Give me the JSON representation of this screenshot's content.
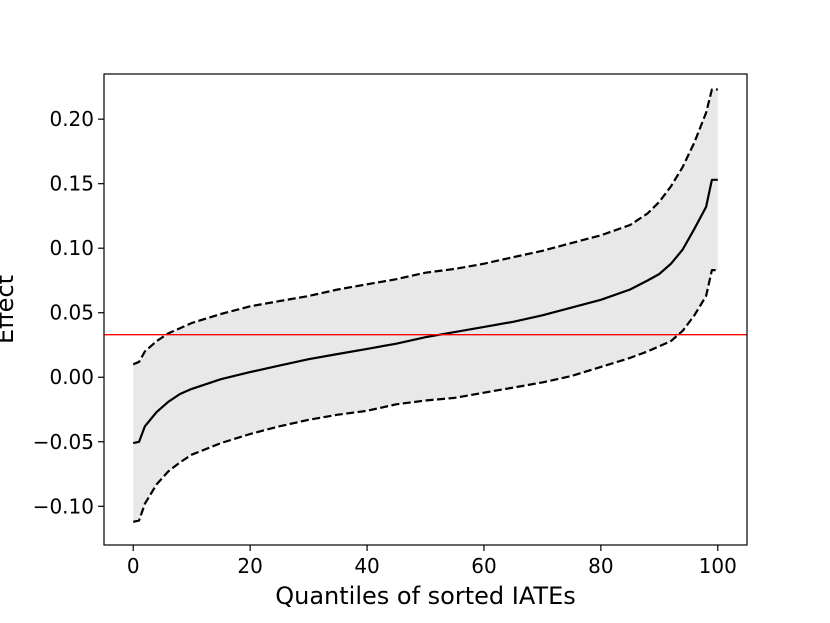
{
  "chart_data": {
    "type": "line",
    "title": "",
    "xlabel": "Quantiles of sorted IATEs",
    "ylabel": "Effect",
    "xlim": [
      -5,
      105
    ],
    "ylim": [
      -0.13,
      0.235
    ],
    "xticks": [
      0,
      20,
      40,
      60,
      80,
      100
    ],
    "xtick_labels": [
      "0",
      "20",
      "40",
      "60",
      "80",
      "100"
    ],
    "yticks": [
      -0.1,
      -0.05,
      0.0,
      0.05,
      0.1,
      0.15,
      0.2
    ],
    "ytick_labels": [
      "−0.10",
      "−0.05",
      "0.00",
      "0.05",
      "0.10",
      "0.15",
      "0.20"
    ],
    "grid": false,
    "reference_line": {
      "y": 0.033,
      "color": "#ff0000"
    },
    "band_color": "#e8e8e8",
    "x": [
      0,
      1,
      2,
      4,
      6,
      8,
      10,
      15,
      20,
      25,
      30,
      35,
      40,
      45,
      50,
      55,
      60,
      65,
      70,
      75,
      80,
      85,
      88,
      90,
      92,
      94,
      96,
      98,
      99,
      100
    ],
    "series": [
      {
        "role": "iate",
        "style": "solid",
        "values": [
          -0.051,
          -0.05,
          -0.038,
          -0.027,
          -0.019,
          -0.013,
          -0.009,
          -0.0015,
          0.004,
          0.009,
          0.014,
          0.018,
          0.022,
          0.026,
          0.031,
          0.035,
          0.039,
          0.043,
          0.048,
          0.054,
          0.06,
          0.068,
          0.075,
          0.08,
          0.088,
          0.099,
          0.115,
          0.132,
          0.153,
          0.153
        ]
      },
      {
        "role": "upper",
        "style": "dashed",
        "values": [
          0.01,
          0.012,
          0.02,
          0.028,
          0.034,
          0.038,
          0.042,
          0.049,
          0.055,
          0.059,
          0.063,
          0.068,
          0.072,
          0.076,
          0.081,
          0.084,
          0.088,
          0.093,
          0.098,
          0.104,
          0.11,
          0.118,
          0.127,
          0.136,
          0.148,
          0.163,
          0.182,
          0.205,
          0.223,
          0.223
        ]
      },
      {
        "role": "lower",
        "style": "dashed",
        "values": [
          -0.112,
          -0.111,
          -0.098,
          -0.083,
          -0.073,
          -0.066,
          -0.06,
          -0.051,
          -0.044,
          -0.038,
          -0.033,
          -0.029,
          -0.026,
          -0.021,
          -0.018,
          -0.016,
          -0.012,
          -0.008,
          -0.004,
          0.001,
          0.008,
          0.015,
          0.02,
          0.024,
          0.028,
          0.036,
          0.048,
          0.063,
          0.083,
          0.083
        ]
      }
    ]
  }
}
